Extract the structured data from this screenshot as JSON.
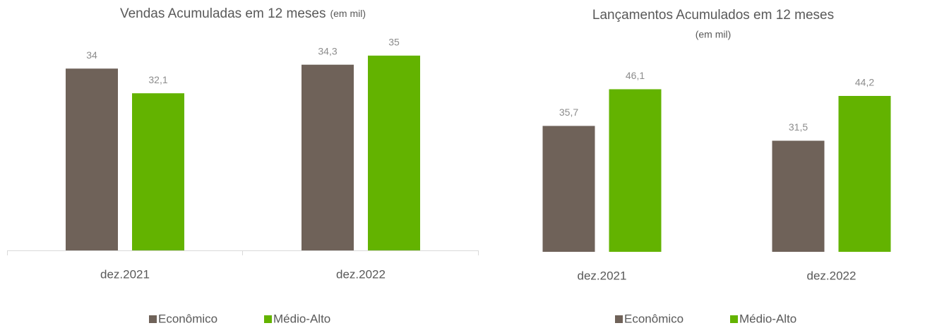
{
  "chart_data": [
    {
      "type": "bar",
      "title": "Vendas Acumuladas em 12 meses",
      "subtitle": "(em mil)",
      "categories": [
        "dez.2021",
        "dez.2022"
      ],
      "series": [
        {
          "name": "Econômico",
          "color": "#6f6259",
          "values": [
            34,
            34.3
          ],
          "value_labels": [
            "34",
            "34,3"
          ]
        },
        {
          "name": "Médio-Alto",
          "color": "#63b300",
          "values": [
            32.1,
            35
          ],
          "value_labels": [
            "32,1",
            "35"
          ]
        }
      ],
      "ylim": [
        20,
        37
      ]
    },
    {
      "type": "bar",
      "title": "Lançamentos Acumulados em 12 meses",
      "subtitle": "(em mil)",
      "categories": [
        "dez.2021",
        "dez.2022"
      ],
      "series": [
        {
          "name": "Econômico",
          "color": "#6f6259",
          "values": [
            35.7,
            31.5
          ],
          "value_labels": [
            "35,7",
            "31,5"
          ]
        },
        {
          "name": "Médio-Alto",
          "color": "#63b300",
          "values": [
            46.1,
            44.2
          ],
          "value_labels": [
            "46,1",
            "44,2"
          ]
        }
      ],
      "ylim": [
        0,
        50
      ]
    }
  ]
}
